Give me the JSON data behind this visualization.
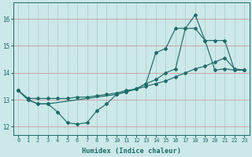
{
  "xlabel": "Humidex (Indice chaleur)",
  "bg_color": "#cce8e8",
  "line_color": "#1e6b6b",
  "xlim": [
    -0.5,
    23.5
  ],
  "ylim": [
    11.7,
    16.6
  ],
  "yticks": [
    12,
    13,
    14,
    15,
    16
  ],
  "xticks": [
    0,
    1,
    2,
    3,
    4,
    5,
    6,
    7,
    8,
    9,
    10,
    11,
    12,
    13,
    14,
    15,
    16,
    17,
    18,
    19,
    20,
    21,
    22,
    23
  ],
  "line1_x": [
    0,
    1,
    2,
    3,
    4,
    5,
    6,
    7,
    8,
    9,
    10,
    11,
    12,
    13,
    14,
    15,
    16,
    17,
    18,
    19,
    20,
    21,
    22,
    23
  ],
  "line1_y": [
    13.35,
    13.0,
    12.85,
    12.85,
    12.55,
    12.15,
    12.1,
    12.15,
    12.6,
    12.85,
    13.2,
    13.3,
    13.4,
    13.6,
    14.75,
    14.9,
    15.65,
    15.65,
    16.15,
    15.2,
    14.1,
    14.15,
    14.1,
    14.1
  ],
  "line2_x": [
    0,
    1,
    2,
    3,
    10,
    11,
    12,
    13,
    14,
    15,
    16,
    17,
    18,
    19,
    20,
    21,
    22,
    23
  ],
  "line2_y": [
    13.35,
    13.0,
    12.85,
    12.85,
    13.2,
    13.3,
    13.4,
    13.6,
    13.75,
    14.0,
    14.15,
    15.65,
    15.65,
    15.2,
    15.2,
    15.2,
    14.1,
    14.1
  ],
  "line3_x": [
    0,
    1,
    2,
    3,
    4,
    5,
    6,
    7,
    8,
    9,
    10,
    11,
    12,
    13,
    14,
    15,
    16,
    17,
    18,
    19,
    20,
    21,
    22,
    23
  ],
  "line3_y": [
    13.35,
    13.05,
    13.05,
    13.05,
    13.05,
    13.05,
    13.1,
    13.1,
    13.15,
    13.2,
    13.25,
    13.35,
    13.4,
    13.5,
    13.6,
    13.7,
    13.85,
    14.0,
    14.15,
    14.25,
    14.4,
    14.55,
    14.15,
    14.1
  ]
}
